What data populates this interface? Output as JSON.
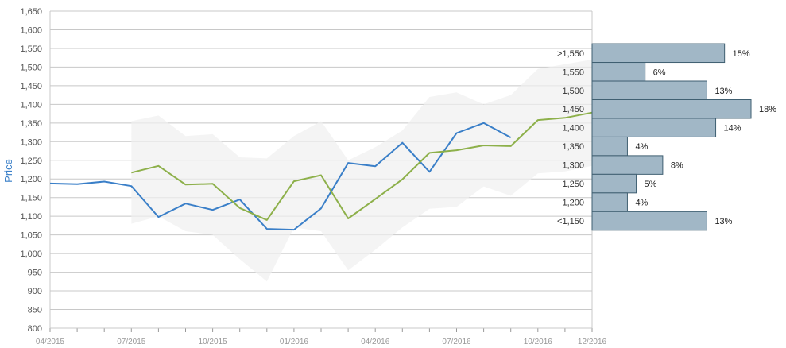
{
  "chart_data": {
    "type": "line",
    "ylabel": "Price",
    "ylim": [
      800,
      1650
    ],
    "y_ticks": [
      "800",
      "850",
      "900",
      "950",
      "1,000",
      "1,050",
      "1,100",
      "1,150",
      "1,200",
      "1,250",
      "1,300",
      "1,350",
      "1,400",
      "1,450",
      "1,500",
      "1,550",
      "1,600",
      "1,650"
    ],
    "x_labels": [
      {
        "month": "2015-04",
        "label": "04/2015"
      },
      {
        "month": "2015-07",
        "label": "07/2015"
      },
      {
        "month": "2015-10",
        "label": "10/2015"
      },
      {
        "month": "2016-01",
        "label": "01/2016"
      },
      {
        "month": "2016-04",
        "label": "04/2016"
      },
      {
        "month": "2016-07",
        "label": "07/2016"
      },
      {
        "month": "2016-10",
        "label": "10/2016"
      },
      {
        "month": "2016-12",
        "label": "12/2016"
      }
    ],
    "colors": {
      "series_1": "#3a7fc8",
      "series_2": "#8db04a",
      "band": "#efefef",
      "histogram": "#a1b7c6",
      "histogram_edge": "#3f5f71",
      "grid": "#c8c8c8"
    },
    "series": [
      {
        "color": "#3a7fc8",
        "points": [
          [
            "2015-04",
            1188
          ],
          [
            "2015-05",
            1186
          ],
          [
            "2015-06",
            1193
          ],
          [
            "2015-07",
            1181
          ],
          [
            "2015-08",
            1098
          ],
          [
            "2015-09",
            1134
          ],
          [
            "2015-10",
            1117
          ],
          [
            "2015-11",
            1145
          ],
          [
            "2015-12",
            1066
          ],
          [
            "2016-01",
            1064
          ],
          [
            "2016-02",
            1121
          ],
          [
            "2016-03",
            1243
          ],
          [
            "2016-04",
            1234
          ],
          [
            "2016-05",
            1297
          ],
          [
            "2016-06",
            1219
          ],
          [
            "2016-07",
            1323
          ],
          [
            "2016-08",
            1350
          ],
          [
            "2016-09",
            1311
          ]
        ]
      },
      {
        "color": "#8db04a",
        "points": [
          [
            "2015-07",
            1217
          ],
          [
            "2015-08",
            1235
          ],
          [
            "2015-09",
            1185
          ],
          [
            "2015-10",
            1187
          ],
          [
            "2015-11",
            1122
          ],
          [
            "2015-12",
            1090
          ],
          [
            "2016-01",
            1194
          ],
          [
            "2016-02",
            1210
          ],
          [
            "2016-03",
            1094
          ],
          [
            "2016-04",
            1146
          ],
          [
            "2016-05",
            1199
          ],
          [
            "2016-06",
            1270
          ],
          [
            "2016-07",
            1277
          ],
          [
            "2016-08",
            1290
          ],
          [
            "2016-09",
            1288
          ],
          [
            "2016-10",
            1358
          ],
          [
            "2016-11",
            1364
          ],
          [
            "2016-12",
            1378
          ]
        ]
      }
    ],
    "band": {
      "upper": [
        [
          "2015-07",
          1355
        ],
        [
          "2015-08",
          1370
        ],
        [
          "2015-09",
          1315
        ],
        [
          "2015-10",
          1320
        ],
        [
          "2015-11",
          1258
        ],
        [
          "2015-12",
          1255
        ],
        [
          "2016-01",
          1315
        ],
        [
          "2016-02",
          1355
        ],
        [
          "2016-03",
          1250
        ],
        [
          "2016-04",
          1285
        ],
        [
          "2016-05",
          1330
        ],
        [
          "2016-06",
          1420
        ],
        [
          "2016-07",
          1432
        ],
        [
          "2016-08",
          1400
        ],
        [
          "2016-09",
          1425
        ],
        [
          "2016-10",
          1495
        ],
        [
          "2016-11",
          1508
        ],
        [
          "2016-12",
          1520
        ]
      ],
      "lower": [
        [
          "2015-07",
          1080
        ],
        [
          "2015-08",
          1100
        ],
        [
          "2015-09",
          1060
        ],
        [
          "2015-10",
          1050
        ],
        [
          "2015-11",
          985
        ],
        [
          "2015-12",
          925
        ],
        [
          "2016-01",
          1070
        ],
        [
          "2016-02",
          1060
        ],
        [
          "2016-03",
          955
        ],
        [
          "2016-04",
          1010
        ],
        [
          "2016-05",
          1070
        ],
        [
          "2016-06",
          1120
        ],
        [
          "2016-07",
          1125
        ],
        [
          "2016-08",
          1180
        ],
        [
          "2016-09",
          1155
        ],
        [
          "2016-10",
          1215
        ],
        [
          "2016-11",
          1220
        ],
        [
          "2016-12",
          1235
        ]
      ]
    },
    "histogram": [
      {
        "label": ">1,550",
        "value": 15,
        "pct": "15%"
      },
      {
        "label": "1,550",
        "value": 6,
        "pct": "6%"
      },
      {
        "label": "1,500",
        "value": 13,
        "pct": "13%"
      },
      {
        "label": "1,450",
        "value": 18,
        "pct": "18%"
      },
      {
        "label": "1,400",
        "value": 14,
        "pct": "14%"
      },
      {
        "label": "1,350",
        "value": 4,
        "pct": "4%"
      },
      {
        "label": "1,300",
        "value": 8,
        "pct": "8%"
      },
      {
        "label": "1,250",
        "value": 5,
        "pct": "5%"
      },
      {
        "label": "1,200",
        "value": 4,
        "pct": "4%"
      },
      {
        "label": "<1,150",
        "value": 13,
        "pct": "13%"
      }
    ]
  }
}
